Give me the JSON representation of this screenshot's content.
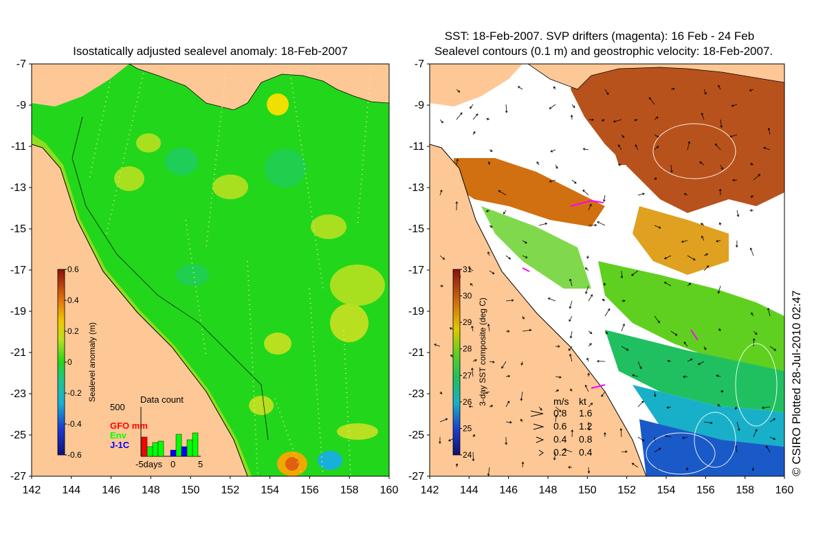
{
  "left_map": {
    "title": "Isostatically adjusted sealevel anomaly: 18-Feb-2007",
    "colorbar": {
      "label": "Sealevel anomaly (m)",
      "ticks": [
        "0.6",
        "0.4",
        "0.2",
        "0",
        "-0.2",
        "-0.4",
        "-0.6"
      ],
      "range": [
        -0.6,
        0.6
      ]
    },
    "data_count": {
      "title": "Data count",
      "max_label": "500",
      "series": [
        {
          "name": "GFO mm",
          "color": "#ff0000"
        },
        {
          "name": "Env",
          "color": "#00ff00"
        },
        {
          "name": "J-1C",
          "color": "#0000ff"
        }
      ],
      "xlabel": "-5days",
      "xticks": [
        "0",
        "5"
      ]
    }
  },
  "right_map": {
    "title_line1": "SST: 18-Feb-2007. SVP drifters (magenta): 16 Feb - 24 Feb",
    "title_line2": "Sealevel contours (0.1 m) and geostrophic velocity: 18-Feb-2007.",
    "colorbar": {
      "label": "3-day SST composite (deg C)",
      "ticks": [
        "31",
        "30",
        "29",
        "28",
        "27",
        "26",
        "25",
        "24"
      ],
      "range": [
        24,
        31
      ]
    },
    "velocity_legend": {
      "headers": [
        "m/s",
        "kt"
      ],
      "rows": [
        {
          "ms": "0.8",
          "kt": "1.6"
        },
        {
          "ms": "0.6",
          "kt": "1.2"
        },
        {
          "ms": "0.4",
          "kt": "0.8"
        },
        {
          "ms": "0.2",
          "kt": "0.4"
        }
      ]
    }
  },
  "axes": {
    "lat_ticks": [
      "-7",
      "-9",
      "-11",
      "-13",
      "-15",
      "-17",
      "-19",
      "-21",
      "-23",
      "-25",
      "-27"
    ],
    "lon_ticks": [
      "142",
      "144",
      "146",
      "148",
      "150",
      "152",
      "154",
      "156",
      "158",
      "160"
    ]
  },
  "credit": "© CSIRO Plotted 28-Jul-2010 02:47",
  "colors": {
    "land": "#fdc896",
    "ocean_green": "#22d61c",
    "sst_warm": "#b8521c",
    "sst_cool": "#1a5ac8"
  }
}
